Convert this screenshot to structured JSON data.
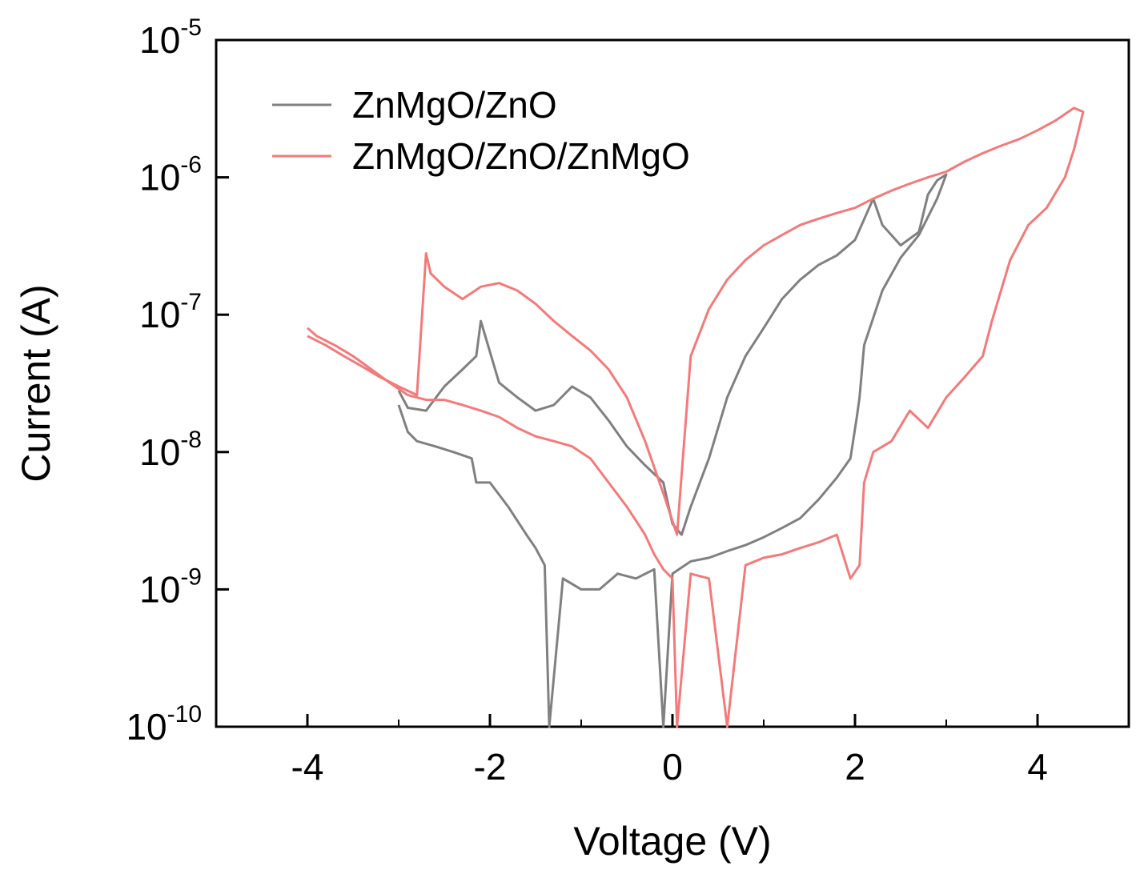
{
  "chart_data": {
    "type": "line",
    "title": "",
    "xlabel": "Voltage (V)",
    "ylabel": "Current (A)",
    "xlim": [
      -5,
      5
    ],
    "yscale": "log",
    "ylim": [
      1e-10,
      1e-05
    ],
    "x_ticks": [
      -4,
      -2,
      0,
      2,
      4
    ],
    "x_tick_labels": [
      "-4",
      "-2",
      "0",
      "2",
      "4"
    ],
    "y_ticks": [
      1e-10,
      1e-09,
      1e-08,
      1e-07,
      1e-06,
      1e-05
    ],
    "y_tick_labels": [
      {
        "base": "10",
        "exp": "-10"
      },
      {
        "base": "10",
        "exp": "-9"
      },
      {
        "base": "10",
        "exp": "-8"
      },
      {
        "base": "10",
        "exp": "-7"
      },
      {
        "base": "10",
        "exp": "-6"
      },
      {
        "base": "10",
        "exp": "-5"
      }
    ],
    "grid": false,
    "legend_position": "top-left",
    "series": [
      {
        "name": "ZnMgO/ZnO",
        "color": "#808080",
        "x": [
          -3.0,
          -2.9,
          -2.8,
          -2.6,
          -2.4,
          -2.2,
          -2.15,
          -2.05,
          -2.0,
          -1.8,
          -1.6,
          -1.5,
          -1.4,
          -1.35,
          -1.2,
          -1.0,
          -0.8,
          -0.6,
          -0.4,
          -0.2,
          -0.1,
          0.0,
          0.2,
          0.4,
          0.6,
          0.8,
          1.0,
          1.2,
          1.4,
          1.6,
          1.8,
          1.95,
          2.02,
          2.05,
          2.1,
          2.3,
          2.5,
          2.7,
          2.9,
          3.0,
          2.9,
          2.8,
          2.7,
          2.5,
          2.3,
          2.2,
          2.0,
          1.8,
          1.6,
          1.4,
          1.2,
          1.0,
          0.8,
          0.6,
          0.4,
          0.2,
          0.1,
          0.0,
          -0.1,
          -0.3,
          -0.5,
          -0.7,
          -0.9,
          -1.1,
          -1.3,
          -1.5,
          -1.7,
          -1.9,
          -2.1,
          -2.15,
          -2.3,
          -2.5,
          -2.7,
          -2.9,
          -3.0
        ],
        "y": [
          2.2e-08,
          1.4e-08,
          1.2e-08,
          1.1e-08,
          1e-08,
          9e-09,
          6e-09,
          6e-09,
          6e-09,
          4e-09,
          2.5e-09,
          2e-09,
          1.5e-09,
          1e-10,
          1.2e-09,
          1e-09,
          1e-09,
          1.3e-09,
          1.2e-09,
          1.4e-09,
          1e-10,
          1.3e-09,
          1.6e-09,
          1.7e-09,
          1.9e-09,
          2.1e-09,
          2.4e-09,
          2.8e-09,
          3.3e-09,
          4.5e-09,
          6.5e-09,
          9e-09,
          1.8e-08,
          2.5e-08,
          6e-08,
          1.5e-07,
          2.6e-07,
          3.8e-07,
          7e-07,
          1.05e-06,
          9.5e-07,
          7.5e-07,
          4e-07,
          3.2e-07,
          4.5e-07,
          7e-07,
          3.5e-07,
          2.7e-07,
          2.3e-07,
          1.8e-07,
          1.3e-07,
          8e-08,
          5e-08,
          2.5e-08,
          9e-09,
          4e-09,
          2.5e-09,
          3e-09,
          6e-09,
          8e-09,
          1.1e-08,
          1.7e-08,
          2.5e-08,
          3e-08,
          2.2e-08,
          2e-08,
          2.5e-08,
          3.2e-08,
          9e-08,
          5e-08,
          4e-08,
          3e-08,
          2e-08,
          2.1e-08,
          2.8e-08
        ]
      },
      {
        "name": "ZnMgO/ZnO/ZnMgO",
        "color": "#f47a7a",
        "x": [
          -4.0,
          -3.9,
          -3.7,
          -3.5,
          -3.3,
          -3.1,
          -2.9,
          -2.7,
          -2.5,
          -2.3,
          -2.1,
          -1.9,
          -1.7,
          -1.5,
          -1.3,
          -1.1,
          -0.9,
          -0.7,
          -0.5,
          -0.3,
          -0.2,
          -0.1,
          0.0,
          0.05,
          0.2,
          0.4,
          0.6,
          0.8,
          1.0,
          1.2,
          1.4,
          1.6,
          1.8,
          1.95,
          2.05,
          2.1,
          2.2,
          2.4,
          2.6,
          2.8,
          3.0,
          3.2,
          3.4,
          3.5,
          3.7,
          3.9,
          4.1,
          4.3,
          4.4,
          4.5,
          4.4,
          4.2,
          4.0,
          3.8,
          3.6,
          3.4,
          3.2,
          3.0,
          2.8,
          2.6,
          2.4,
          2.2,
          2.0,
          1.8,
          1.6,
          1.4,
          1.2,
          1.0,
          0.8,
          0.6,
          0.4,
          0.2,
          0.05,
          -0.1,
          -0.3,
          -0.5,
          -0.7,
          -0.9,
          -1.1,
          -1.3,
          -1.5,
          -1.7,
          -1.9,
          -2.1,
          -2.3,
          -2.5,
          -2.65,
          -2.7,
          -2.8,
          -3.0,
          -3.2,
          -3.4,
          -3.6,
          -3.8,
          -4.0
        ],
        "y": [
          8e-08,
          7e-08,
          6e-08,
          5e-08,
          4e-08,
          3.2e-08,
          2.6e-08,
          2.4e-08,
          2.4e-08,
          2.2e-08,
          2e-08,
          1.8e-08,
          1.5e-08,
          1.3e-08,
          1.2e-08,
          1.1e-08,
          9e-09,
          6e-09,
          4e-09,
          2.5e-09,
          1.8e-09,
          1.4e-09,
          1.2e-09,
          1e-10,
          1.3e-09,
          1.2e-09,
          1e-10,
          1.5e-09,
          1.7e-09,
          1.8e-09,
          2e-09,
          2.2e-09,
          2.5e-09,
          1.2e-09,
          1.5e-09,
          6e-09,
          1e-08,
          1.2e-08,
          2e-08,
          1.5e-08,
          2.5e-08,
          3.5e-08,
          5e-08,
          9e-08,
          2.5e-07,
          4.5e-07,
          6e-07,
          1e-06,
          1.6e-06,
          3e-06,
          3.2e-06,
          2.6e-06,
          2.2e-06,
          1.9e-06,
          1.7e-06,
          1.5e-06,
          1.3e-06,
          1.1e-06,
          1e-06,
          9e-07,
          8e-07,
          7e-07,
          6e-07,
          5.5e-07,
          5e-07,
          4.5e-07,
          3.8e-07,
          3.2e-07,
          2.5e-07,
          1.8e-07,
          1.1e-07,
          5e-08,
          2.5e-09,
          5e-09,
          1.2e-08,
          2.5e-08,
          4e-08,
          5.5e-08,
          7e-08,
          9e-08,
          1.2e-07,
          1.5e-07,
          1.7e-07,
          1.6e-07,
          1.3e-07,
          1.6e-07,
          2e-07,
          2.8e-07,
          2.6e-08,
          3e-08,
          3.5e-08,
          4.2e-08,
          5e-08,
          6e-08,
          7e-08
        ]
      }
    ]
  }
}
